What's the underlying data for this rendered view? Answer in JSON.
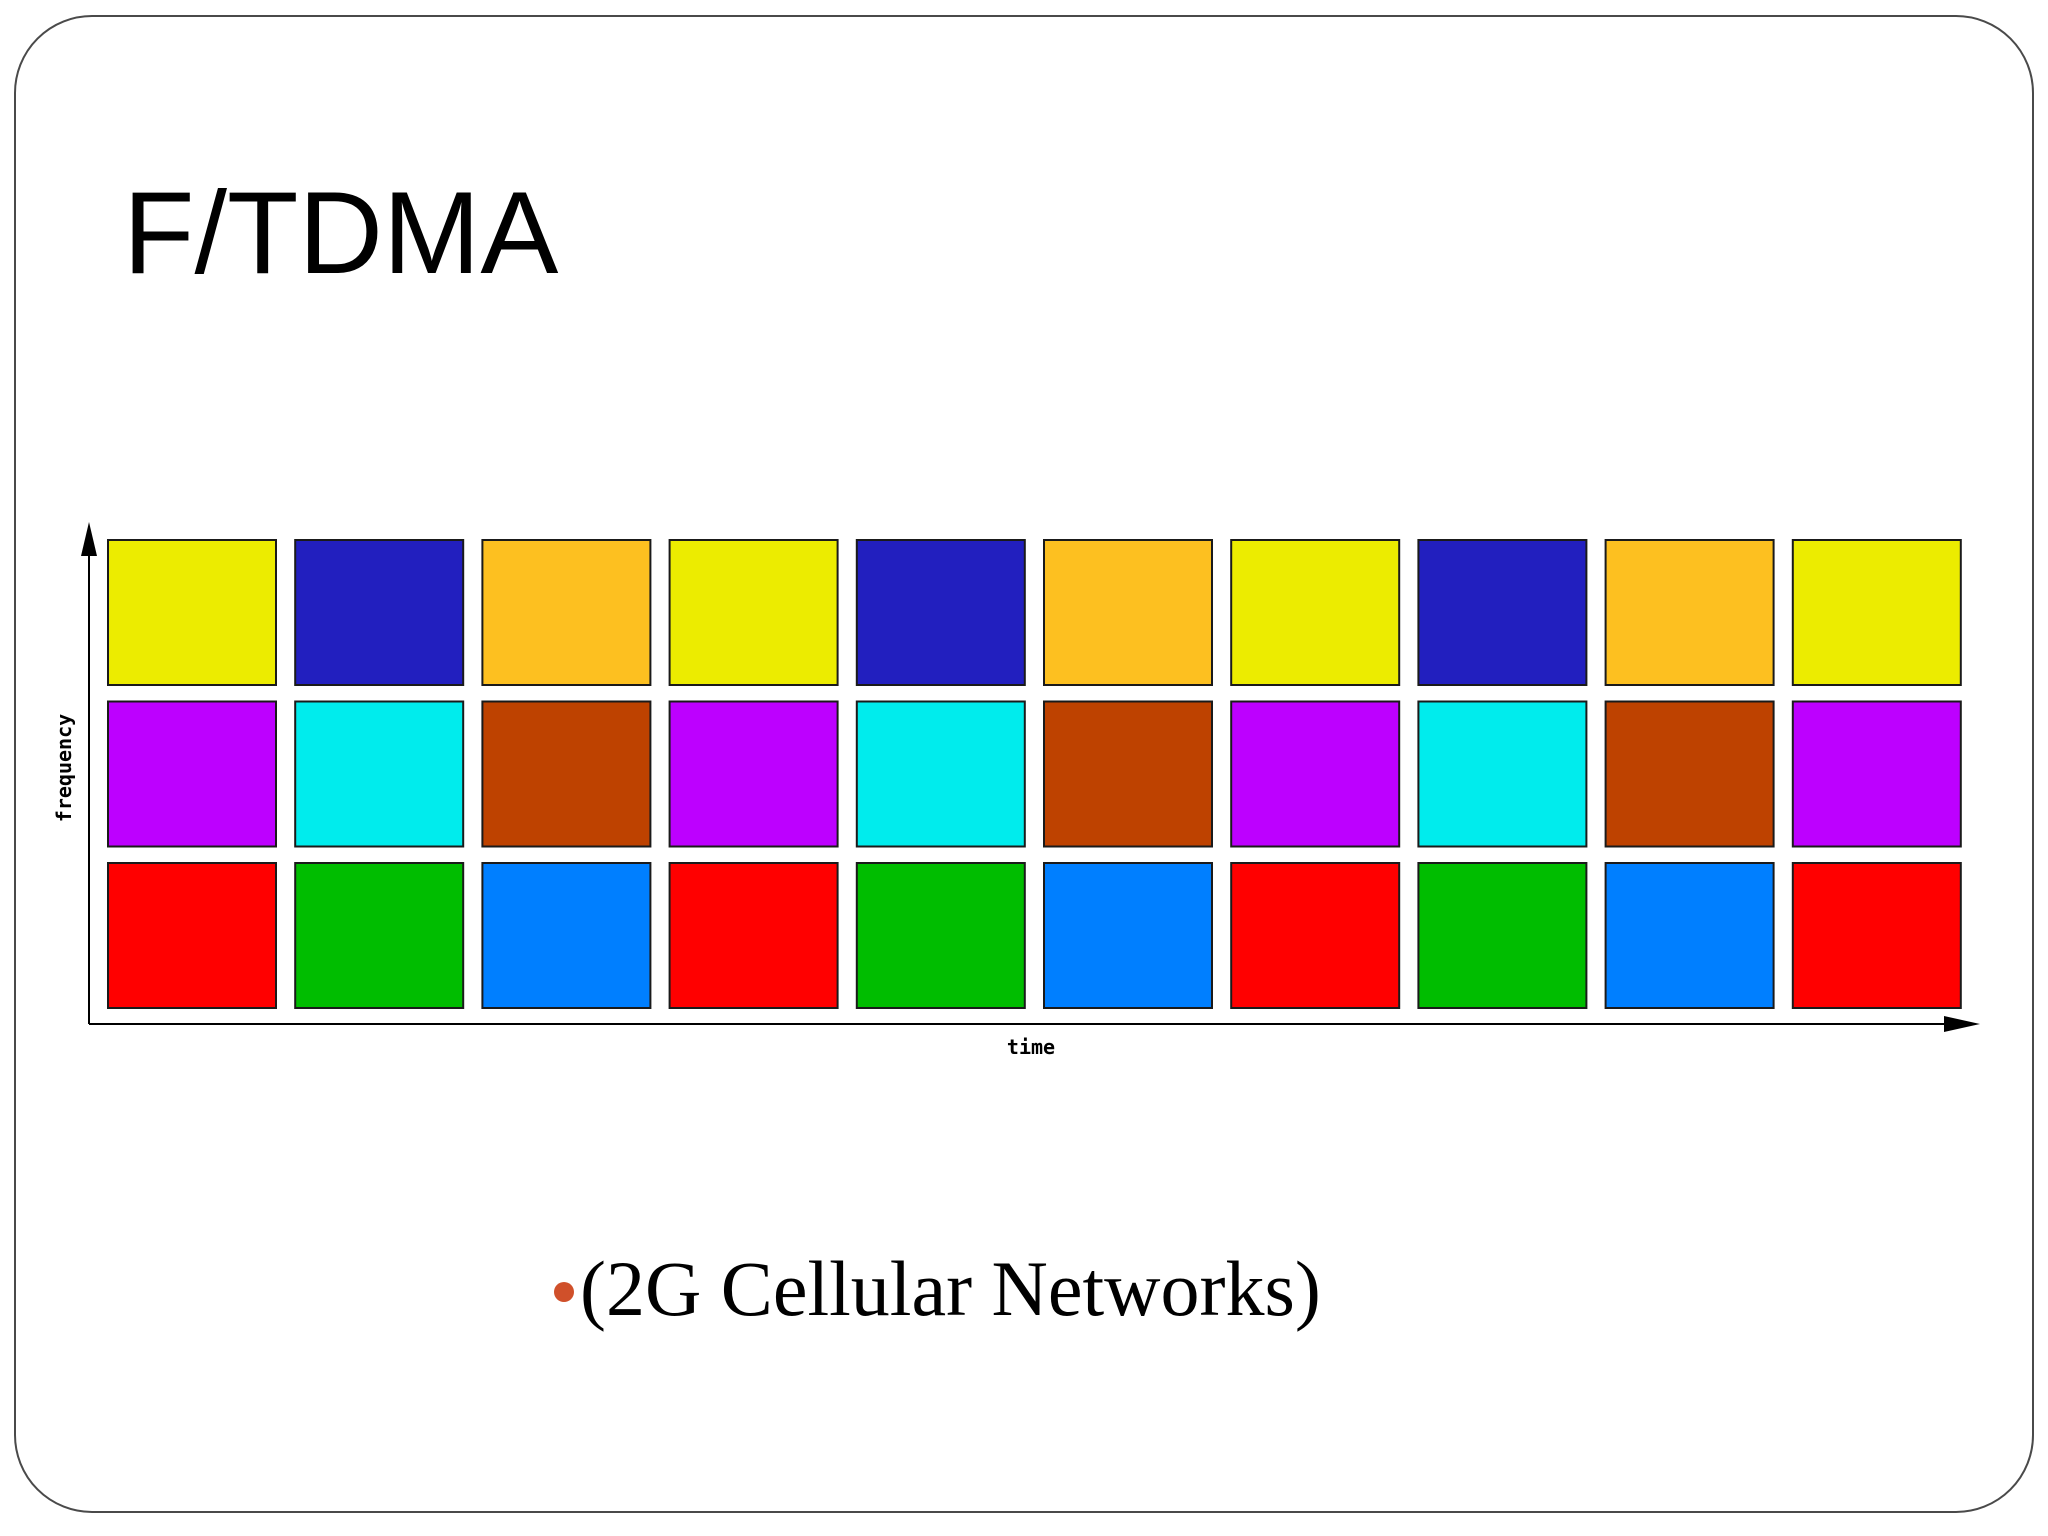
{
  "slide": {
    "title": "F/TDMA",
    "bullet_text": "(2G Cellular Networks)"
  },
  "diagram": {
    "x_axis_label": "time",
    "y_axis_label": "frequency",
    "grid_rows": [
      [
        "#ecec00",
        "#221fbf",
        "#fdc020",
        "#ecec00",
        "#221fbf",
        "#fdc020",
        "#ecec00",
        "#221fbf",
        "#fdc020",
        "#ecec00"
      ],
      [
        "#bd00ff",
        "#00eced",
        "#be4200",
        "#bd00ff",
        "#00eced",
        "#be4200",
        "#bd00ff",
        "#00eced",
        "#be4200",
        "#bd00ff"
      ],
      [
        "#ff0000",
        "#00bd00",
        "#007fff",
        "#ff0000",
        "#00bd00",
        "#007fff",
        "#ff0000",
        "#00bd00",
        "#007fff",
        "#ff0000"
      ]
    ]
  },
  "colors": {
    "bullet": "#d0502a",
    "frame": "#4a4a4a"
  }
}
